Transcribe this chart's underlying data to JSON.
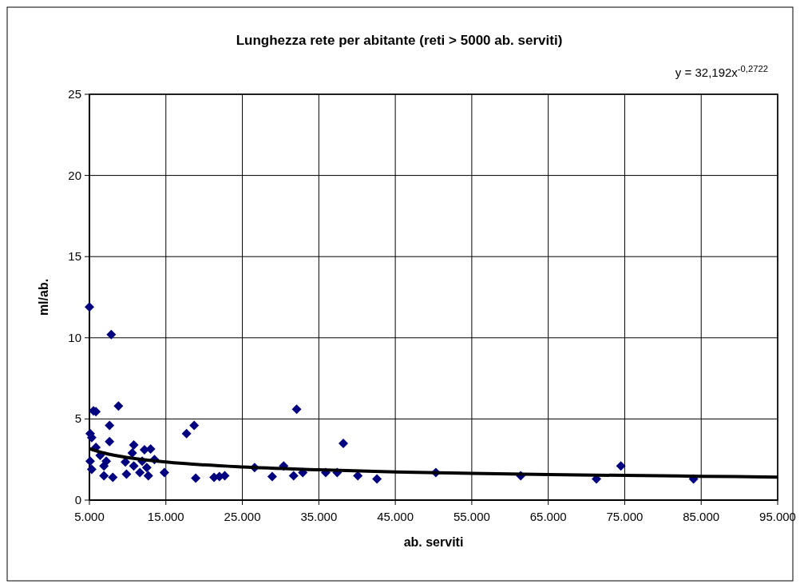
{
  "chart_data": {
    "type": "scatter",
    "title": "Lunghezza rete per abitante (reti > 5000 ab. serviti)",
    "xlabel": "ab. serviti",
    "ylabel": "ml/ab.",
    "annotations": [
      "y = 32,192x$^{-0,2722}$"
    ],
    "xlim": [
      5000,
      95000
    ],
    "xticks": [
      {
        "value": 5000,
        "label": "5.000"
      },
      {
        "value": 15000,
        "label": "15.000"
      },
      {
        "value": 25000,
        "label": "25.000"
      },
      {
        "value": 35000,
        "label": "35.000"
      },
      {
        "value": 45000,
        "label": "45.000"
      },
      {
        "value": 55000,
        "label": "55.000"
      },
      {
        "value": 65000,
        "label": "65.000"
      },
      {
        "value": 75000,
        "label": "75.000"
      },
      {
        "value": 85000,
        "label": "85.000"
      },
      {
        "value": 95000,
        "label": "95.000"
      }
    ],
    "ylim": [
      0,
      25
    ],
    "yticks": [
      0,
      5,
      10,
      15,
      20,
      25
    ],
    "grid": true,
    "series": [
      {
        "color": "#000080",
        "marker": "diamond",
        "x": [
          5000,
          7850,
          5530,
          5850,
          8800,
          7630,
          5100,
          5300,
          7630,
          10800,
          13000,
          12200,
          10600,
          5850,
          6400,
          5100,
          7200,
          9700,
          11900,
          13500,
          5300,
          6900,
          10800,
          12500,
          6900,
          8060,
          9850,
          11600,
          12700,
          14800,
          17700,
          18700,
          18900,
          21300,
          22000,
          22700,
          32100,
          26600,
          28900,
          30400,
          31700,
          32900,
          38200,
          35900,
          37400,
          40100,
          42600,
          50300,
          61400,
          71300,
          74500,
          84000
        ],
        "values": [
          11.9,
          10.2,
          5.5,
          5.45,
          5.8,
          4.6,
          4.1,
          3.85,
          3.6,
          3.4,
          3.15,
          3.1,
          2.9,
          3.25,
          2.75,
          2.4,
          2.4,
          2.35,
          2.4,
          2.5,
          1.9,
          2.1,
          2.1,
          2.0,
          1.5,
          1.4,
          1.6,
          1.7,
          1.5,
          1.7,
          4.1,
          4.6,
          1.35,
          1.4,
          1.45,
          1.5,
          5.6,
          2.0,
          1.45,
          2.1,
          1.5,
          1.7,
          3.5,
          1.7,
          1.7,
          1.5,
          1.3,
          1.7,
          1.5,
          1.3,
          2.1,
          1.3
        ]
      },
      {
        "type": "line",
        "color": "#000000",
        "marker": "none",
        "line_style": "solid",
        "x": [
          5000,
          7000,
          10000,
          15000,
          25000,
          35000,
          45000,
          55000,
          65000,
          75000,
          85000,
          95000
        ],
        "values": [
          3.17,
          2.89,
          2.62,
          2.35,
          2.04,
          1.87,
          1.74,
          1.65,
          1.58,
          1.52,
          1.47,
          1.42
        ]
      }
    ]
  }
}
